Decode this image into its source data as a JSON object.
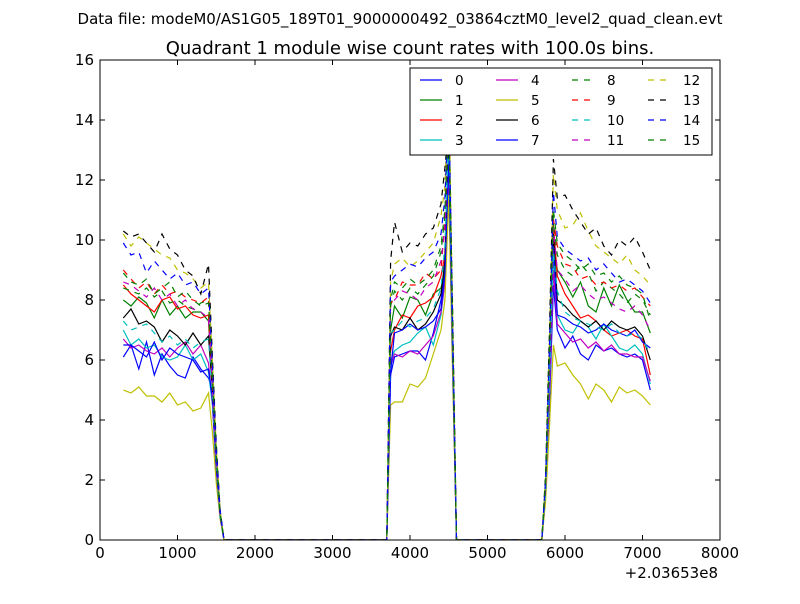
{
  "suptitle": "Data file: modeM0/AS1G05_189T01_9000000492_03864cztM0_level2_quad_clean.evt",
  "chart_data": {
    "type": "line",
    "title": "Quadrant 1 module wise count rates with 100.0s bins.",
    "xlabel": "",
    "ylabel": "",
    "x_offset_label": "+2.03653e8",
    "xlim": [
      0,
      8000
    ],
    "ylim": [
      0,
      16
    ],
    "xticks": [
      0,
      1000,
      2000,
      3000,
      4000,
      5000,
      6000,
      7000,
      8000
    ],
    "xtick_labels": [
      "0",
      "1000",
      "2000",
      "3000",
      "4000",
      "5000",
      "6000",
      "7000",
      "8000"
    ],
    "yticks": [
      0,
      2,
      4,
      6,
      8,
      10,
      12,
      14,
      16
    ],
    "ytick_labels": [
      "0",
      "2",
      "4",
      "6",
      "8",
      "10",
      "12",
      "14",
      "16"
    ],
    "grid": false,
    "legend_position": "top-right",
    "x": [
      300,
      400,
      500,
      600,
      700,
      800,
      900,
      1000,
      1100,
      1200,
      1300,
      1400,
      1450,
      1500,
      1550,
      1600,
      1650,
      3700,
      3750,
      3800,
      3900,
      4000,
      4100,
      4200,
      4300,
      4400,
      4450,
      4500,
      4550,
      4600,
      4650,
      5700,
      5750,
      5800,
      5850,
      5900,
      6000,
      6100,
      6200,
      6300,
      6400,
      6500,
      6600,
      6700,
      6800,
      6900,
      7000,
      7100
    ],
    "series": [
      {
        "name": "0",
        "color": "#0000ff",
        "dash": "solid",
        "values": [
          6.1,
          6.5,
          5.7,
          6.6,
          5.5,
          6.2,
          5.8,
          5.5,
          5.4,
          6.1,
          5.7,
          5.4,
          5.0,
          2.5,
          0.8,
          0.0,
          0.0,
          0.0,
          5.5,
          6.1,
          6.2,
          6.3,
          6.3,
          6.0,
          6.9,
          8.0,
          9.0,
          12.0,
          6.0,
          0.0,
          0.0,
          0.0,
          1.5,
          4.5,
          8.5,
          7.0,
          6.4,
          6.8,
          6.2,
          6.0,
          6.5,
          6.3,
          6.4,
          6.2,
          6.1,
          6.2,
          6.0,
          5.0
        ]
      },
      {
        "name": "1",
        "color": "#008000",
        "dash": "solid",
        "values": [
          8.0,
          7.8,
          8.1,
          7.9,
          7.4,
          8.0,
          7.5,
          7.8,
          7.4,
          7.6,
          7.6,
          7.3,
          5.0,
          2.7,
          0.9,
          0.0,
          0.0,
          0.0,
          7.0,
          7.8,
          7.4,
          8.1,
          8.0,
          7.5,
          8.2,
          8.4,
          9.0,
          13.0,
          6.5,
          0.0,
          0.0,
          0.0,
          1.8,
          5.5,
          10.0,
          9.0,
          8.6,
          8.1,
          8.6,
          7.8,
          7.6,
          8.4,
          7.8,
          8.5,
          8.0,
          7.6,
          7.6,
          6.9
        ]
      },
      {
        "name": "2",
        "color": "#ff0000",
        "dash": "solid",
        "values": [
          8.5,
          8.2,
          8.0,
          7.8,
          7.6,
          8.0,
          8.1,
          7.7,
          7.8,
          7.5,
          7.4,
          7.5,
          5.0,
          2.7,
          0.9,
          0.0,
          0.0,
          0.0,
          6.3,
          7.0,
          7.5,
          7.4,
          7.8,
          7.9,
          8.1,
          8.8,
          9.5,
          13.5,
          7.0,
          0.0,
          0.0,
          0.0,
          1.8,
          6.0,
          10.5,
          8.8,
          8.2,
          7.8,
          7.4,
          7.5,
          7.3,
          7.0,
          6.8,
          6.9,
          7.0,
          6.8,
          6.7,
          5.5
        ]
      },
      {
        "name": "3",
        "color": "#00bfbf",
        "dash": "solid",
        "values": [
          7.0,
          6.5,
          6.7,
          6.4,
          6.5,
          6.1,
          6.0,
          6.1,
          6.5,
          6.0,
          6.2,
          5.6,
          4.5,
          2.3,
          0.8,
          0.0,
          0.0,
          0.0,
          6.0,
          6.3,
          6.5,
          6.6,
          6.9,
          7.1,
          6.5,
          7.5,
          8.6,
          12.5,
          6.0,
          0.0,
          0.0,
          0.0,
          1.6,
          5.0,
          9.5,
          7.5,
          7.0,
          6.9,
          7.3,
          7.1,
          6.7,
          7.2,
          6.8,
          6.4,
          6.3,
          6.5,
          6.2,
          5.2
        ]
      },
      {
        "name": "4",
        "color": "#bf00bf",
        "dash": "solid",
        "values": [
          6.7,
          6.4,
          6.5,
          6.3,
          6.2,
          6.4,
          6.1,
          6.4,
          6.6,
          6.2,
          6.5,
          5.9,
          4.6,
          2.3,
          0.8,
          0.0,
          0.0,
          0.0,
          5.8,
          6.2,
          6.1,
          6.3,
          6.2,
          6.5,
          6.8,
          7.6,
          8.6,
          12.4,
          6.0,
          0.0,
          0.0,
          0.0,
          1.6,
          5.0,
          9.0,
          7.2,
          6.9,
          6.6,
          6.7,
          6.4,
          6.6,
          6.3,
          6.5,
          6.2,
          6.2,
          6.1,
          6.1,
          5.3
        ]
      },
      {
        "name": "5",
        "color": "#bfbf00",
        "dash": "solid",
        "values": [
          5.0,
          4.9,
          5.1,
          4.8,
          4.8,
          4.6,
          4.9,
          4.5,
          4.6,
          4.3,
          4.4,
          4.9,
          3.6,
          1.9,
          0.7,
          0.0,
          0.0,
          0.0,
          4.5,
          4.6,
          4.6,
          5.2,
          5.1,
          5.4,
          6.2,
          7.0,
          8.0,
          11.5,
          5.5,
          0.0,
          0.0,
          0.0,
          1.3,
          3.8,
          6.5,
          5.8,
          5.9,
          5.5,
          5.2,
          4.7,
          5.2,
          5.0,
          4.6,
          5.1,
          4.9,
          5.0,
          4.8,
          4.5
        ]
      },
      {
        "name": "6",
        "color": "#000000",
        "dash": "solid",
        "values": [
          7.4,
          7.7,
          7.2,
          7.3,
          7.1,
          6.6,
          7.0,
          6.8,
          6.5,
          6.9,
          6.5,
          6.8,
          5.0,
          2.6,
          0.9,
          0.0,
          0.0,
          0.0,
          6.8,
          7.1,
          7.0,
          7.4,
          7.0,
          7.2,
          7.6,
          8.2,
          9.3,
          13.2,
          6.5,
          0.0,
          0.0,
          0.0,
          1.8,
          5.8,
          10.2,
          8.0,
          7.8,
          7.5,
          7.3,
          7.1,
          7.3,
          7.0,
          7.3,
          7.1,
          7.0,
          7.1,
          6.8,
          6.0
        ]
      },
      {
        "name": "7",
        "color": "#0000ff",
        "dash": "solid",
        "values": [
          6.5,
          6.5,
          6.3,
          6.1,
          6.6,
          6.0,
          6.4,
          6.2,
          6.1,
          6.0,
          5.6,
          5.7,
          4.7,
          2.4,
          0.8,
          0.0,
          0.0,
          0.0,
          5.6,
          6.9,
          7.0,
          7.2,
          7.0,
          7.1,
          7.3,
          7.7,
          8.9,
          12.8,
          6.2,
          0.0,
          0.0,
          0.0,
          1.7,
          5.5,
          9.8,
          7.5,
          7.4,
          7.2,
          7.1,
          6.9,
          7.0,
          7.2,
          7.0,
          6.9,
          6.8,
          7.0,
          6.6,
          6.4
        ]
      },
      {
        "name": "8",
        "color": "#008000",
        "dash": "dashed",
        "values": [
          8.4,
          8.3,
          8.2,
          8.4,
          8.1,
          8.3,
          7.9,
          8.0,
          7.8,
          7.7,
          7.9,
          8.0,
          5.2,
          2.8,
          0.9,
          0.0,
          0.0,
          0.0,
          7.8,
          8.3,
          8.0,
          8.4,
          8.2,
          8.5,
          8.8,
          9.6,
          10.8,
          14.5,
          7.0,
          0.0,
          0.0,
          0.0,
          1.9,
          5.8,
          10.6,
          9.5,
          9.0,
          8.8,
          9.2,
          8.9,
          8.3,
          8.6,
          8.4,
          8.2,
          7.9,
          8.2,
          8.0,
          7.5
        ]
      },
      {
        "name": "9",
        "color": "#ff0000",
        "dash": "dashed",
        "values": [
          9.0,
          8.7,
          8.4,
          8.6,
          8.2,
          8.5,
          8.2,
          8.3,
          8.1,
          8.0,
          7.9,
          8.1,
          5.3,
          2.8,
          0.9,
          0.0,
          0.0,
          0.0,
          7.9,
          8.0,
          8.6,
          8.5,
          8.5,
          8.9,
          8.7,
          9.0,
          10.6,
          14.2,
          7.0,
          0.0,
          0.0,
          0.0,
          1.9,
          5.9,
          10.7,
          9.8,
          9.2,
          9.1,
          8.7,
          8.8,
          8.5,
          8.6,
          8.4,
          8.5,
          8.3,
          8.4,
          8.1,
          7.8
        ]
      },
      {
        "name": "10",
        "color": "#00bfbf",
        "dash": "dashed",
        "values": [
          7.3,
          7.0,
          7.1,
          7.2,
          6.9,
          6.6,
          6.8,
          6.5,
          6.7,
          6.4,
          6.6,
          6.7,
          4.8,
          2.5,
          0.8,
          0.0,
          0.0,
          0.0,
          6.9,
          7.0,
          7.3,
          7.1,
          7.3,
          7.4,
          7.7,
          8.4,
          9.8,
          13.6,
          6.6,
          0.0,
          0.0,
          0.0,
          1.7,
          5.4,
          9.6,
          8.3,
          7.6,
          7.4,
          7.3,
          7.2,
          7.1,
          7.0,
          7.2,
          6.9,
          6.8,
          6.9,
          6.7,
          6.2
        ]
      },
      {
        "name": "11",
        "color": "#bf00bf",
        "dash": "dashed",
        "values": [
          8.6,
          8.5,
          8.3,
          8.1,
          8.4,
          8.0,
          8.2,
          7.8,
          8.0,
          7.7,
          7.6,
          7.4,
          5.1,
          2.7,
          0.9,
          0.0,
          0.0,
          0.0,
          7.8,
          8.0,
          8.3,
          8.2,
          8.0,
          8.4,
          8.6,
          9.3,
          10.4,
          14.8,
          6.8,
          0.0,
          0.0,
          0.0,
          1.8,
          5.8,
          10.4,
          9.0,
          8.7,
          8.3,
          8.5,
          8.2,
          8.0,
          8.1,
          7.9,
          7.7,
          7.6,
          7.8,
          7.5,
          7.0
        ]
      },
      {
        "name": "12",
        "color": "#bfbf00",
        "dash": "dashed",
        "values": [
          10.2,
          9.8,
          10.1,
          9.9,
          9.7,
          9.5,
          9.4,
          9.0,
          8.9,
          8.7,
          8.4,
          8.6,
          6.0,
          3.1,
          1.0,
          0.0,
          0.0,
          0.0,
          8.6,
          9.2,
          9.4,
          9.1,
          9.3,
          9.6,
          9.9,
          10.8,
          11.8,
          15.2,
          7.5,
          0.0,
          0.0,
          0.0,
          2.1,
          6.8,
          12.2,
          11.0,
          10.4,
          10.5,
          10.9,
          10.3,
          9.8,
          9.6,
          9.4,
          9.2,
          9.5,
          9.0,
          8.8,
          8.5
        ]
      },
      {
        "name": "13",
        "color": "#000000",
        "dash": "dashed",
        "values": [
          10.3,
          10.1,
          10.2,
          9.9,
          9.6,
          10.2,
          9.7,
          9.5,
          9.0,
          8.8,
          8.2,
          9.2,
          6.1,
          3.2,
          1.0,
          0.0,
          0.0,
          0.0,
          9.3,
          10.6,
          9.6,
          9.9,
          9.8,
          10.2,
          10.4,
          11.2,
          12.4,
          13.8,
          7.7,
          0.0,
          0.0,
          0.0,
          2.2,
          7.0,
          12.7,
          11.4,
          11.5,
          11.0,
          10.6,
          10.2,
          10.4,
          9.8,
          9.5,
          10.0,
          9.8,
          10.1,
          9.6,
          9.0
        ]
      },
      {
        "name": "14",
        "color": "#0000ff",
        "dash": "dashed",
        "values": [
          9.9,
          9.5,
          9.6,
          8.9,
          9.3,
          9.0,
          8.7,
          8.9,
          8.5,
          8.6,
          8.2,
          8.4,
          5.8,
          3.0,
          1.0,
          0.0,
          0.0,
          0.0,
          8.6,
          8.8,
          9.0,
          9.2,
          9.1,
          9.4,
          9.6,
          10.2,
          11.4,
          14.6,
          7.2,
          0.0,
          0.0,
          0.0,
          2.0,
          6.5,
          11.6,
          10.1,
          9.7,
          9.5,
          9.3,
          9.4,
          9.0,
          9.2,
          8.9,
          8.6,
          8.7,
          8.5,
          8.3,
          7.9
        ]
      },
      {
        "name": "15",
        "color": "#008000",
        "dash": "dashed",
        "values": [
          8.9,
          8.6,
          8.5,
          8.7,
          8.2,
          8.4,
          8.6,
          8.1,
          8.3,
          8.0,
          7.8,
          7.9,
          5.4,
          2.8,
          0.9,
          0.0,
          0.0,
          0.0,
          8.0,
          8.6,
          8.4,
          8.7,
          8.5,
          8.7,
          9.0,
          9.8,
          11.0,
          14.0,
          7.1,
          0.0,
          0.0,
          0.0,
          2.0,
          6.2,
          11.0,
          9.9,
          9.5,
          9.3,
          9.0,
          9.2,
          8.8,
          8.9,
          8.6,
          8.8,
          8.5,
          8.4,
          8.2,
          7.3
        ]
      }
    ]
  }
}
